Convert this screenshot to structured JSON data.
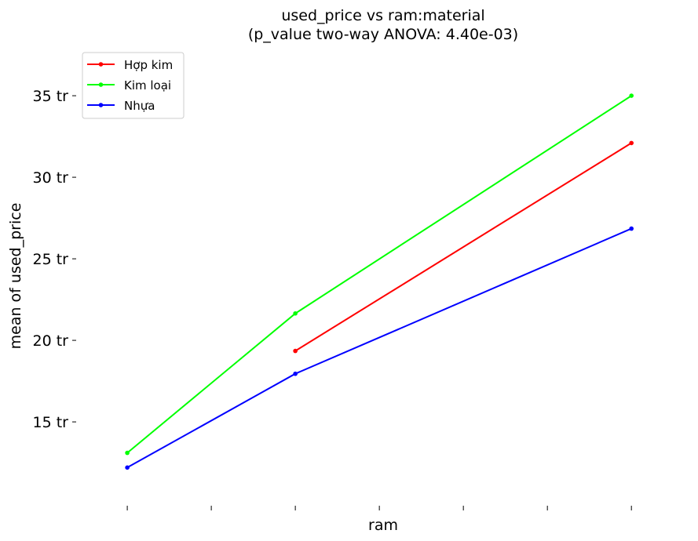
{
  "chart_data": {
    "type": "line",
    "title_line1": "used_price vs ram:material",
    "title_line2": "(p_value two-way ANOVA: 4.40e-03)",
    "xlabel": "ram",
    "ylabel": "mean of used_price",
    "x_tick_count": 7,
    "x_tick_labels": [
      "",
      "",
      "",
      "",
      "",
      "",
      ""
    ],
    "y_ticks": [
      {
        "value": 15,
        "label": "15 tr"
      },
      {
        "value": 20,
        "label": "20 tr"
      },
      {
        "value": 25,
        "label": "25 tr"
      },
      {
        "value": 30,
        "label": "30 tr"
      },
      {
        "value": 35,
        "label": "35 tr"
      }
    ],
    "x_range": [
      -0.3,
      6.4
    ],
    "y_range": [
      10.1,
      37.6
    ],
    "grid": false,
    "legend_position": "top-left",
    "series": [
      {
        "name": "Hợp kim",
        "color": "#ff0000",
        "x": [
          2,
          6
        ],
        "y": [
          19.35,
          32.1
        ]
      },
      {
        "name": "Kim loại",
        "color": "#00ff00",
        "x": [
          0,
          2,
          6
        ],
        "y": [
          13.1,
          21.65,
          35.0
        ]
      },
      {
        "name": "Nhựa",
        "color": "#0000ff",
        "x": [
          0,
          2,
          6
        ],
        "y": [
          12.2,
          17.95,
          26.85
        ]
      }
    ]
  }
}
